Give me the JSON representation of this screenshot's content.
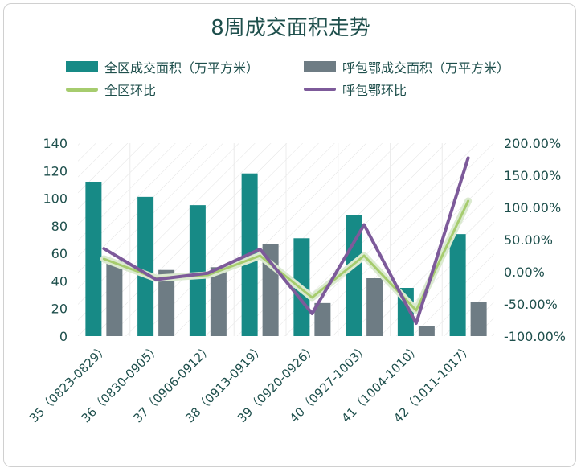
{
  "chart_data": {
    "type": "bar",
    "title": "8周成交面积走势",
    "categories": [
      "35（0823-0829）",
      "36（0830-0905）",
      "37（0906-0912）",
      "38（0913-0919）",
      "39（0920-0926）",
      "40（0927-1003）",
      "41（1004-1010）",
      "42（1011-1017）"
    ],
    "series": [
      {
        "name": "全区成交面积（万平方米）",
        "kind": "bar",
        "axis": "left",
        "color": "#178a86",
        "values": [
          112,
          101,
          95,
          118,
          71,
          88,
          35,
          74
        ]
      },
      {
        "name": "呼包鄂成交面积（万平方米）",
        "kind": "bar",
        "axis": "left",
        "color": "#6e7c84",
        "values": [
          55,
          48,
          50,
          67,
          24,
          42,
          7,
          25
        ]
      },
      {
        "name": "全区环比",
        "kind": "line",
        "axis": "right",
        "color": "#a6cc6e",
        "values": [
          20,
          -10,
          -5,
          25,
          -40,
          25,
          -60,
          110
        ]
      },
      {
        "name": "呼包鄂环比",
        "kind": "line",
        "axis": "right",
        "color": "#7d5a9a",
        "values": [
          36,
          -12,
          -2,
          35,
          -65,
          73,
          -80,
          177
        ]
      }
    ],
    "y_left": {
      "min": 0,
      "max": 140,
      "ticks": [
        "0",
        "20",
        "40",
        "60",
        "80",
        "100",
        "120",
        "140"
      ]
    },
    "y_right": {
      "min": -100,
      "max": 200,
      "ticks": [
        "-100.00%",
        "-50.00%",
        "0.00%",
        "50.00%",
        "100.00%",
        "150.00%",
        "200.00%"
      ]
    },
    "legend_position": "top",
    "grid": "diagonal hatch background"
  }
}
